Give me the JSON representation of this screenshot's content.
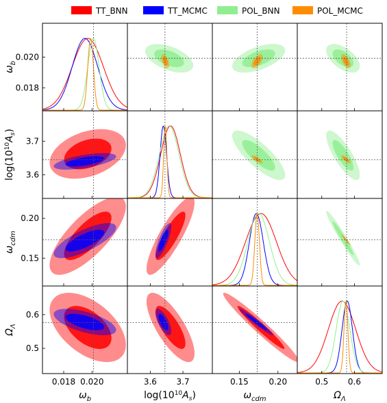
{
  "legend": [
    {
      "label": "TT_BNN",
      "color": "#ff0000"
    },
    {
      "label": "TT_MCMC",
      "color": "#0000ff"
    },
    {
      "label": "POL_BNN",
      "color": "#90ee90"
    },
    {
      "label": "POL_MCMC",
      "color": "#ff8c00"
    }
  ],
  "params": [
    {
      "name": "omega_b",
      "label_base": "ω",
      "label_sub": "b",
      "range": [
        0.0165,
        0.0225
      ],
      "ticks": [
        0.018,
        0.02
      ],
      "tick_labels": [
        "0.018",
        "0.020"
      ],
      "fiducial": 0.0201
    },
    {
      "name": "logAs",
      "label_base": "log(10",
      "label_sup": "10",
      "label_mid": "A",
      "label_sub": "s",
      "label_end": ")",
      "range": [
        3.53,
        3.79
      ],
      "ticks": [
        3.6,
        3.7
      ],
      "tick_labels": [
        "3.6",
        "3.7"
      ],
      "fiducial": 3.645
    },
    {
      "name": "omega_cdm",
      "label_base": "ω",
      "label_sub": "cdm",
      "range": [
        0.115,
        0.225
      ],
      "ticks": [
        0.15,
        0.2
      ],
      "tick_labels": [
        "0.15",
        "0.20"
      ],
      "fiducial": 0.173
    },
    {
      "name": "Omega_L",
      "label_base": "Ω",
      "label_sub": "Λ",
      "range": [
        0.425,
        0.685
      ],
      "ticks": [
        0.5,
        0.6
      ],
      "tick_labels": [
        "0.5",
        "0.6"
      ],
      "fiducial": 0.576
    }
  ],
  "chart_data": {
    "type": "corner",
    "series": [
      {
        "name": "TT_BNN",
        "color": "#ff0000",
        "mean": [
          0.0197,
          3.662,
          0.178,
          0.562
        ],
        "std": [
          0.0011,
          0.03,
          0.02,
          0.042
        ],
        "corr": [
          [
            1,
            0.35,
            0.75,
            -0.5
          ],
          [
            0.35,
            1,
            0.85,
            -0.75
          ],
          [
            0.75,
            0.85,
            1,
            -0.97
          ],
          [
            -0.5,
            -0.75,
            -0.97,
            1
          ]
        ]
      },
      {
        "name": "TT_MCMC",
        "color": "#0000ff",
        "mean": [
          0.0195,
          3.64,
          0.172,
          0.578
        ],
        "std": [
          0.0009,
          0.01,
          0.009,
          0.016
        ],
        "corr": [
          [
            1,
            0.6,
            0.75,
            -0.6
          ],
          [
            0.6,
            1,
            0.8,
            -0.7
          ],
          [
            0.75,
            0.8,
            1,
            -0.97
          ],
          [
            -0.6,
            -0.7,
            -0.97,
            1
          ]
        ]
      },
      {
        "name": "POL_BNN",
        "color": "#90ee90",
        "mean": [
          0.0201,
          3.658,
          0.175,
          0.565
        ],
        "std": [
          0.0004,
          0.03,
          0.014,
          0.021
        ],
        "corr": [
          [
            1,
            -0.5,
            0.55,
            -0.55
          ],
          [
            -0.5,
            1,
            -0.8,
            -0.8
          ],
          [
            0.55,
            -0.8,
            1,
            -0.97
          ],
          [
            -0.55,
            -0.8,
            -0.97,
            1
          ]
        ]
      },
      {
        "name": "POL_MCMC",
        "color": "#ff8c00",
        "mean": [
          0.0199,
          3.646,
          0.173,
          0.574
        ],
        "std": [
          0.0002,
          0.005,
          0.003,
          0.006
        ],
        "corr": [
          [
            1,
            -0.5,
            0.6,
            -0.6
          ],
          [
            -0.5,
            1,
            -0.8,
            -0.8
          ],
          [
            0.6,
            -0.8,
            1,
            -0.97
          ],
          [
            -0.6,
            -0.8,
            -0.97,
            1
          ]
        ]
      }
    ],
    "grid": false,
    "legend_position": "top-center"
  }
}
